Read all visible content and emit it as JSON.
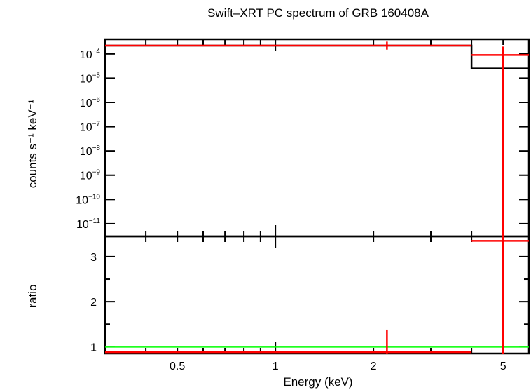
{
  "chart_data": [
    {
      "type": "line",
      "panel": "spectrum",
      "title": "Swift–XRT PC spectrum of GRB 160408A",
      "xlabel": "Energy (keV)",
      "ylabel": "counts s⁻¹ keV⁻¹",
      "x_scale": "log",
      "y_scale": "log",
      "xlim": [
        0.3,
        6.0
      ],
      "ylim": [
        3e-12,
        0.0004
      ],
      "yticks": [
        {
          "value": 0.0001,
          "base": "10",
          "exp": "−4"
        },
        {
          "value": 1e-05,
          "base": "10",
          "exp": "−5"
        },
        {
          "value": 1e-06,
          "base": "10",
          "exp": "−6"
        },
        {
          "value": 1e-07,
          "base": "10",
          "exp": "−7"
        },
        {
          "value": 1e-08,
          "base": "10",
          "exp": "−8"
        },
        {
          "value": 1e-09,
          "base": "10",
          "exp": "−9"
        },
        {
          "value": 1e-10,
          "base": "10",
          "exp": "−10"
        },
        {
          "value": 1e-11,
          "base": "10",
          "exp": "−11"
        }
      ],
      "data_points": [
        {
          "x": 2.2,
          "x_lo": 0.3,
          "x_hi": 4.0,
          "y": 0.00022,
          "y_lo": 0.00015,
          "y_hi": 0.00032
        },
        {
          "x": 5.0,
          "x_lo": 4.0,
          "x_hi": 6.0,
          "y": 9e-05,
          "y_lo": 3e-12,
          "y_hi": 0.0002
        }
      ],
      "model": [
        {
          "x_lo": 0.3,
          "x_hi": 4.0,
          "y": 0.00022
        },
        {
          "x_lo": 4.0,
          "x_hi": 6.0,
          "y": 2.5e-05
        }
      ]
    },
    {
      "type": "line",
      "panel": "ratio",
      "xlabel": "Energy (keV)",
      "ylabel": "ratio",
      "x_scale": "log",
      "y_scale": "linear",
      "xlim": [
        0.3,
        6.0
      ],
      "ylim": [
        0.85,
        3.45
      ],
      "xticks": [
        {
          "value": 0.5,
          "label": "0.5"
        },
        {
          "value": 1,
          "label": "1"
        },
        {
          "value": 2,
          "label": "2"
        },
        {
          "value": 5,
          "label": "5"
        }
      ],
      "yticks": [
        {
          "value": 1,
          "label": "1"
        },
        {
          "value": 2,
          "label": "2"
        },
        {
          "value": 3,
          "label": "3"
        }
      ],
      "reference_line": 1.0,
      "data_points": [
        {
          "x": 2.2,
          "x_lo": 0.3,
          "x_hi": 4.0,
          "y": 0.88,
          "y_lo": 0.85,
          "y_hi": 1.38
        },
        {
          "x": 5.0,
          "x_lo": 4.0,
          "x_hi": 6.0,
          "y": 3.35,
          "y_lo": 0.85,
          "y_hi": 3.45
        }
      ]
    }
  ],
  "colors": {
    "data": "#ff0000",
    "model": "#000000",
    "reference": "#00ff00",
    "frame": "#000000"
  }
}
